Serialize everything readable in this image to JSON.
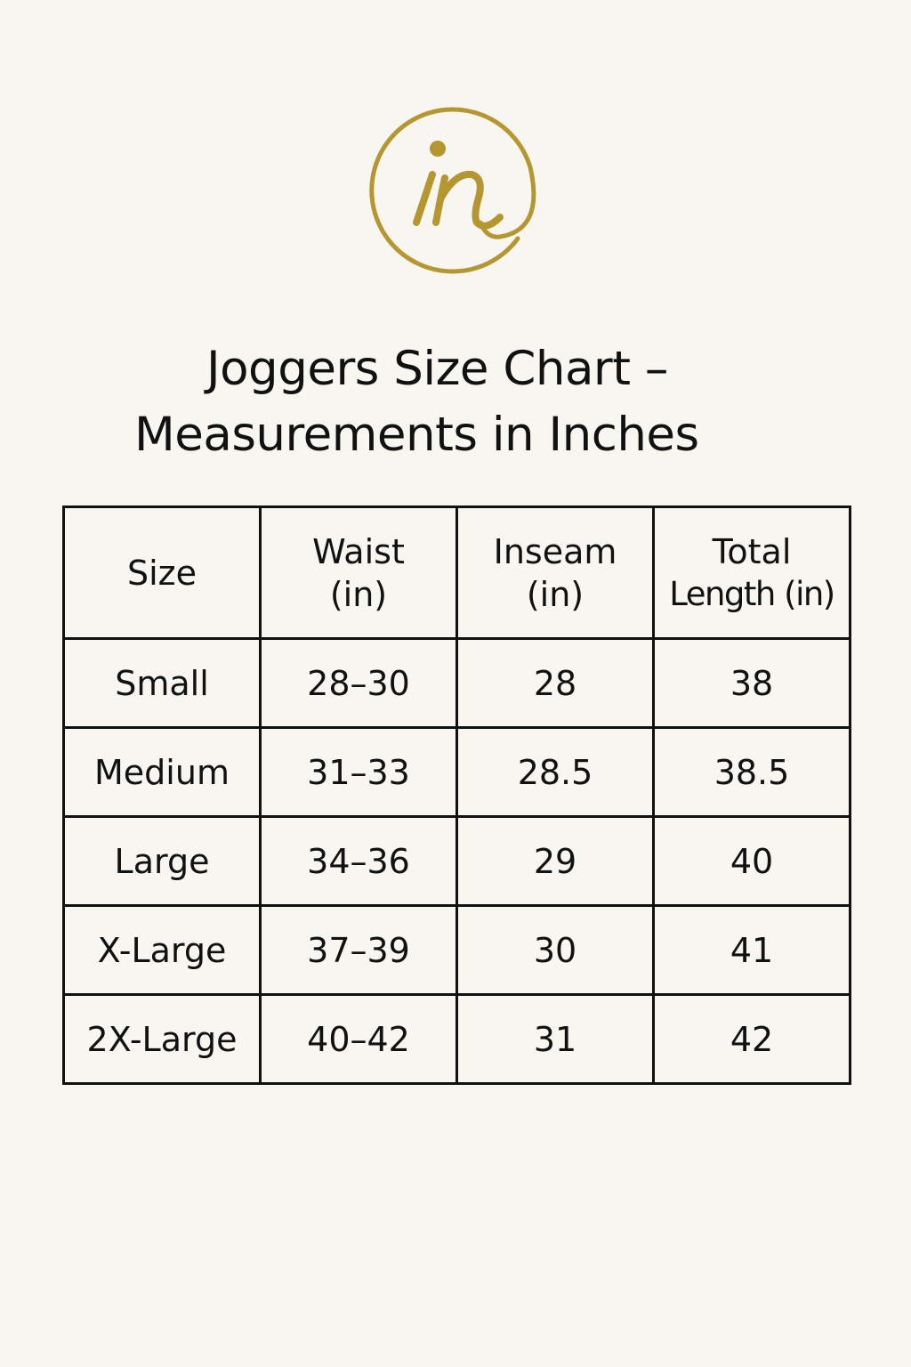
{
  "logo": {
    "icon": "brand-monogram-icon",
    "letters": "in",
    "color": "#b5962f"
  },
  "title": {
    "line1": "Joggers Size Chart –",
    "line2": "Measurements in Inches"
  },
  "table": {
    "headers": [
      {
        "line1": "Size",
        "line2": ""
      },
      {
        "line1": "Waist",
        "line2": "(in)"
      },
      {
        "line1": "Inseam",
        "line2": "(in)"
      },
      {
        "line1": "Total",
        "line2": "Length (in)"
      }
    ],
    "rows": [
      {
        "size": "Small",
        "waist": "28–30",
        "inseam": "28",
        "length": "38"
      },
      {
        "size": "Medium",
        "waist": "31–33",
        "inseam": "28.5",
        "length": "38.5"
      },
      {
        "size": "Large",
        "waist": "34–36",
        "inseam": "29",
        "length": "40"
      },
      {
        "size": "X-Large",
        "waist": "37–39",
        "inseam": "30",
        "length": "41"
      },
      {
        "size": "2X-Large",
        "waist": "40–42",
        "inseam": "31",
        "length": "42"
      }
    ]
  }
}
